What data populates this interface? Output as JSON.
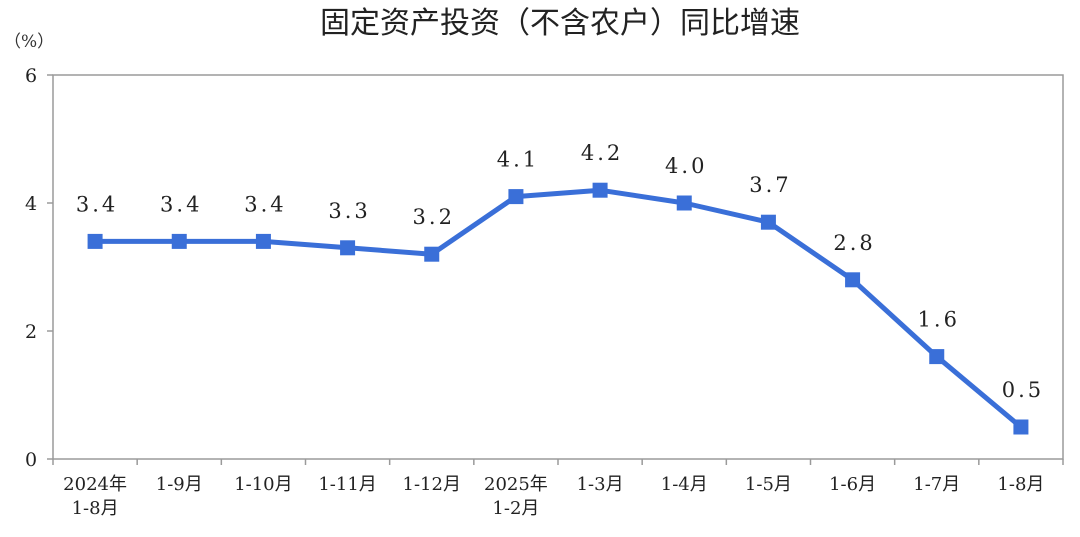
{
  "chart_data": {
    "type": "line",
    "title": "固定资产投资（不含农户）同比增速",
    "unit_label": "（%）",
    "categories": [
      [
        "2024年",
        "1-8月"
      ],
      [
        "1-9月"
      ],
      [
        "1-10月"
      ],
      [
        "1-11月"
      ],
      [
        "1-12月"
      ],
      [
        "2025年",
        "1-2月"
      ],
      [
        "1-3月"
      ],
      [
        "1-4月"
      ],
      [
        "1-5月"
      ],
      [
        "1-6月"
      ],
      [
        "1-7月"
      ],
      [
        "1-8月"
      ]
    ],
    "series": [
      {
        "values": [
          3.4,
          3.4,
          3.4,
          3.3,
          3.2,
          4.1,
          4.2,
          4.0,
          3.7,
          2.8,
          1.6,
          0.5
        ],
        "labels": [
          "3.4",
          "3.4",
          "3.4",
          "3.3",
          "3.2",
          "4.1",
          "4.2",
          "4.0",
          "3.7",
          "2.8",
          "1.6",
          "0.5"
        ]
      }
    ],
    "ylim": [
      0,
      6
    ],
    "yticks": [
      "0",
      "2",
      "4",
      "6"
    ],
    "grid": false,
    "colors": {
      "line": "#3a6fd8",
      "axis": "#9a9a9a"
    }
  }
}
